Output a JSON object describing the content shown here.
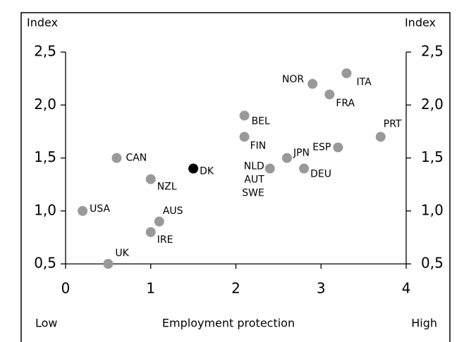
{
  "chart_data": {
    "type": "scatter",
    "y_label_left": "Index",
    "y_label_right": "Index",
    "x_label": "Employment protection",
    "x_low": "Low",
    "x_high": "High",
    "xlim": [
      0,
      4
    ],
    "xticks": [
      0,
      1,
      2,
      3,
      4
    ],
    "ylim": [
      0.5,
      2.5
    ],
    "yticks": [
      {
        "value": 0.5,
        "label": "0,5"
      },
      {
        "value": 1.0,
        "label": "1,0"
      },
      {
        "value": 1.5,
        "label": "1,5"
      },
      {
        "value": 2.0,
        "label": "2,0"
      },
      {
        "value": 2.5,
        "label": "2,5"
      }
    ],
    "points": [
      {
        "x": 0.2,
        "y": 1.0,
        "labels": [
          "USA"
        ],
        "color": "#999999"
      },
      {
        "x": 0.6,
        "y": 1.5,
        "labels": [
          "CAN"
        ],
        "color": "#999999"
      },
      {
        "x": 1.0,
        "y": 1.3,
        "labels": [
          "NZL"
        ],
        "color": "#999999"
      },
      {
        "x": 1.5,
        "y": 1.4,
        "labels": [
          "DK"
        ],
        "color": "#000000"
      },
      {
        "x": 1.1,
        "y": 0.9,
        "labels": [
          "AUS"
        ],
        "color": "#999999"
      },
      {
        "x": 1.0,
        "y": 0.8,
        "labels": [
          "IRE"
        ],
        "color": "#999999"
      },
      {
        "x": 0.5,
        "y": 0.5,
        "labels": [
          "UK"
        ],
        "color": "#999999"
      },
      {
        "x": 2.1,
        "y": 1.9,
        "labels": [
          "BEL"
        ],
        "color": "#999999"
      },
      {
        "x": 2.1,
        "y": 1.7,
        "labels": [
          "FIN"
        ],
        "color": "#999999"
      },
      {
        "x": 2.4,
        "y": 1.4,
        "labels": [
          "NLD",
          "AUT",
          "SWE"
        ],
        "color": "#999999"
      },
      {
        "x": 2.6,
        "y": 1.5,
        "labels": [
          "JPN"
        ],
        "color": "#999999"
      },
      {
        "x": 2.8,
        "y": 1.4,
        "labels": [
          "DEU"
        ],
        "color": "#999999"
      },
      {
        "x": 3.2,
        "y": 1.6,
        "labels": [
          "ESP"
        ],
        "color": "#999999"
      },
      {
        "x": 3.7,
        "y": 1.7,
        "labels": [
          "PRT"
        ],
        "color": "#999999"
      },
      {
        "x": 2.9,
        "y": 2.2,
        "labels": [
          "NOR"
        ],
        "color": "#999999"
      },
      {
        "x": 3.1,
        "y": 2.1,
        "labels": [
          "FRA"
        ],
        "color": "#999999"
      },
      {
        "x": 3.3,
        "y": 2.3,
        "labels": [
          "ITA"
        ],
        "color": "#999999"
      }
    ]
  }
}
